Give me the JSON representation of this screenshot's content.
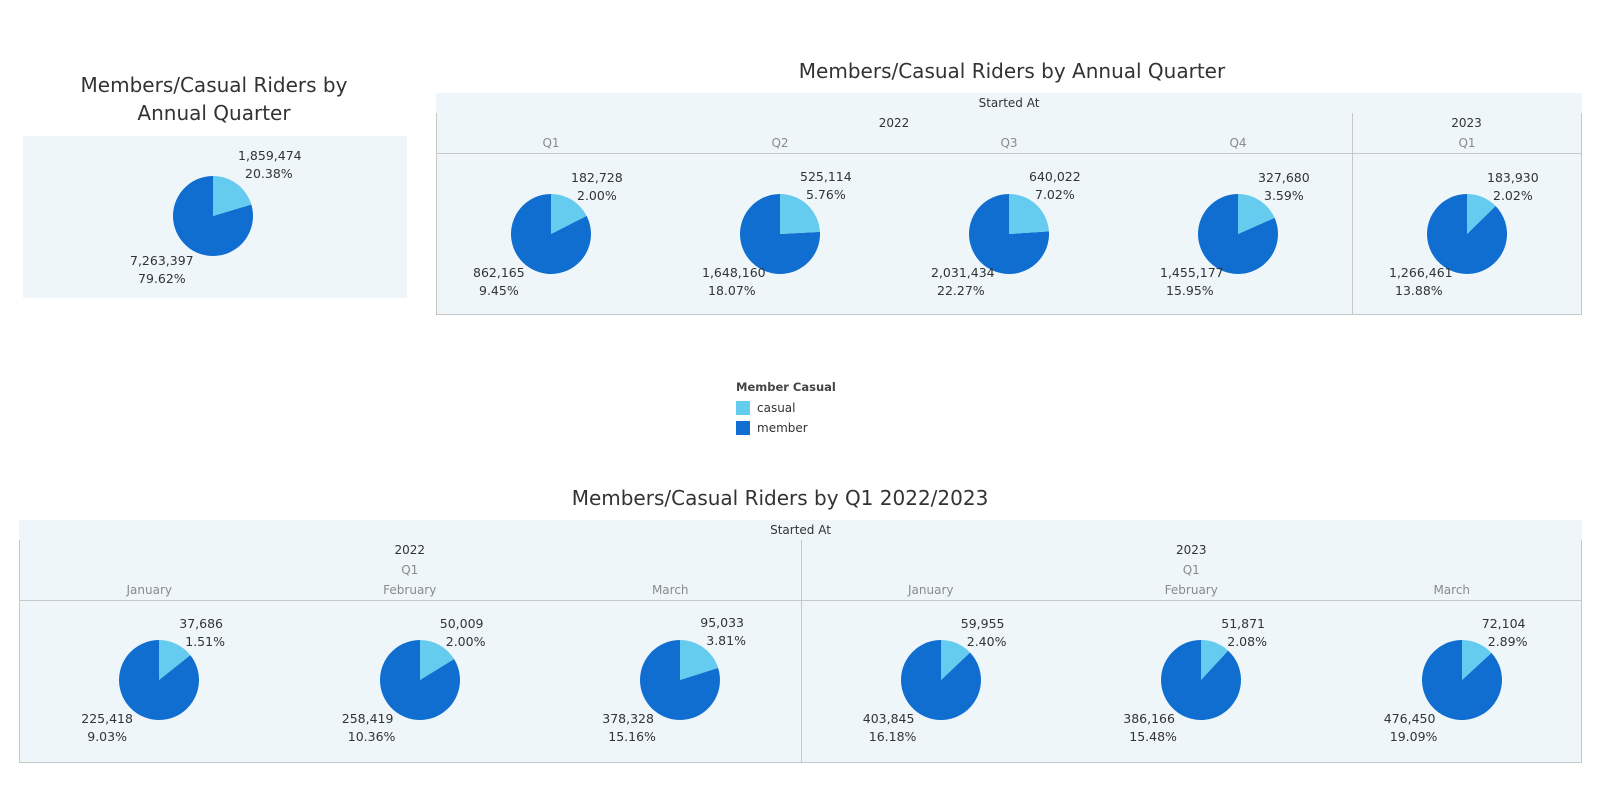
{
  "colors": {
    "casual": "#65cbef",
    "member": "#0f6ecf"
  },
  "legend": {
    "title": "Member Casual",
    "items": [
      {
        "label": "casual",
        "color": "#65cbef"
      },
      {
        "label": "member",
        "color": "#0f6ecf"
      }
    ]
  },
  "chart_data": [
    {
      "type": "pie",
      "title": "Members/Casual Riders by Annual Quarter",
      "categories": [
        "casual",
        "member"
      ],
      "slices": [
        {
          "name": "casual",
          "value": 1859474,
          "value_label": "1,859,474",
          "percent_label": "20.38%"
        },
        {
          "name": "member",
          "value": 7263397,
          "value_label": "7,263,397",
          "percent_label": "79.62%"
        }
      ]
    },
    {
      "type": "pie",
      "title": "Members/Casual Riders by Annual Quarter",
      "column_header": "Started At",
      "years": [
        {
          "label": "2022",
          "periods": 4
        },
        {
          "label": "2023",
          "periods": 1
        }
      ],
      "categories": [
        "casual",
        "member"
      ],
      "pies": [
        {
          "year": "2022",
          "period": "Q1",
          "casual": 182728,
          "casual_label": "182,728",
          "casual_pct": "2.00%",
          "member": 862165,
          "member_label": "862,165",
          "member_pct": "9.45%"
        },
        {
          "year": "2022",
          "period": "Q2",
          "casual": 525114,
          "casual_label": "525,114",
          "casual_pct": "5.76%",
          "member": 1648160,
          "member_label": "1,648,160",
          "member_pct": "18.07%"
        },
        {
          "year": "2022",
          "period": "Q3",
          "casual": 640022,
          "casual_label": "640,022",
          "casual_pct": "7.02%",
          "member": 2031434,
          "member_label": "2,031,434",
          "member_pct": "22.27%"
        },
        {
          "year": "2022",
          "period": "Q4",
          "casual": 327680,
          "casual_label": "327,680",
          "casual_pct": "3.59%",
          "member": 1455177,
          "member_label": "1,455,177",
          "member_pct": "15.95%"
        },
        {
          "year": "2023",
          "period": "Q1",
          "casual": 183930,
          "casual_label": "183,930",
          "casual_pct": "2.02%",
          "member": 1266461,
          "member_label": "1,266,461",
          "member_pct": "13.88%"
        }
      ]
    },
    {
      "type": "pie",
      "title": "Members/Casual Riders by Q1 2022/2023",
      "column_header": "Started At",
      "years": [
        {
          "label": "2022",
          "quarter": "Q1",
          "periods": 3
        },
        {
          "label": "2023",
          "quarter": "Q1",
          "periods": 3
        }
      ],
      "categories": [
        "casual",
        "member"
      ],
      "pies": [
        {
          "year": "2022",
          "period": "January",
          "casual": 37686,
          "casual_label": "37,686",
          "casual_pct": "1.51%",
          "member": 225418,
          "member_label": "225,418",
          "member_pct": "9.03%"
        },
        {
          "year": "2022",
          "period": "February",
          "casual": 50009,
          "casual_label": "50,009",
          "casual_pct": "2.00%",
          "member": 258419,
          "member_label": "258,419",
          "member_pct": "10.36%"
        },
        {
          "year": "2022",
          "period": "March",
          "casual": 95033,
          "casual_label": "95,033",
          "casual_pct": "3.81%",
          "member": 378328,
          "member_label": "378,328",
          "member_pct": "15.16%"
        },
        {
          "year": "2023",
          "period": "January",
          "casual": 59955,
          "casual_label": "59,955",
          "casual_pct": "2.40%",
          "member": 403845,
          "member_label": "403,845",
          "member_pct": "16.18%"
        },
        {
          "year": "2023",
          "period": "February",
          "casual": 51871,
          "casual_label": "51,871",
          "casual_pct": "2.08%",
          "member": 386166,
          "member_label": "386,166",
          "member_pct": "15.48%"
        },
        {
          "year": "2023",
          "period": "March",
          "casual": 72104,
          "casual_label": "72,104",
          "casual_pct": "2.89%",
          "member": 476450,
          "member_label": "476,450",
          "member_pct": "19.09%"
        }
      ]
    }
  ]
}
